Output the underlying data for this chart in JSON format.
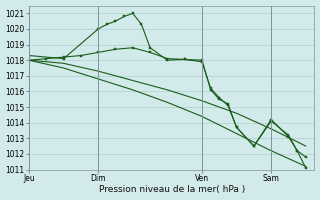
{
  "background_color": "#d2eaea",
  "grid_color": "#b0d0d0",
  "line_color": "#1a5c1a",
  "sep_color": "#8090a0",
  "xlabel": "Pression niveau de la mer( hPa )",
  "ylim": [
    1011,
    1021.5
  ],
  "yticks": [
    1011,
    1012,
    1013,
    1014,
    1015,
    1016,
    1017,
    1018,
    1019,
    1020,
    1021
  ],
  "xtick_labels": [
    "Jeu",
    "Dim",
    "Ven",
    "Sam"
  ],
  "xtick_positions": [
    0,
    8,
    20,
    28
  ],
  "xlim": [
    0,
    33
  ],
  "lines": [
    {
      "x": [
        0,
        4,
        8,
        9,
        10,
        11,
        12,
        13,
        14,
        16,
        18,
        20,
        21,
        22,
        23,
        24,
        26,
        28,
        30,
        31,
        32
      ],
      "y": [
        1018.3,
        1018.1,
        1020.0,
        1020.3,
        1020.5,
        1020.8,
        1021.0,
        1020.3,
        1018.8,
        1018.0,
        1018.05,
        1017.9,
        1016.2,
        1015.6,
        1015.1,
        1013.7,
        1012.5,
        1014.2,
        1013.1,
        1012.2,
        1011.8
      ],
      "marker": true
    },
    {
      "x": [
        0,
        2,
        4,
        6,
        8,
        10,
        12,
        14,
        16,
        18,
        20,
        21,
        22,
        23,
        24,
        26,
        28,
        30,
        31,
        32
      ],
      "y": [
        1018.0,
        1018.1,
        1018.2,
        1018.3,
        1018.5,
        1018.7,
        1018.8,
        1018.5,
        1018.1,
        1018.05,
        1018.0,
        1016.1,
        1015.5,
        1015.2,
        1013.7,
        1012.5,
        1014.1,
        1013.2,
        1012.2,
        1011.1
      ],
      "marker": true
    },
    {
      "x": [
        0,
        4,
        8,
        12,
        16,
        20,
        24,
        28,
        32
      ],
      "y": [
        1018.0,
        1017.8,
        1017.3,
        1016.7,
        1016.1,
        1015.4,
        1014.6,
        1013.6,
        1012.5
      ],
      "marker": false
    },
    {
      "x": [
        0,
        4,
        8,
        12,
        16,
        20,
        24,
        28,
        32
      ],
      "y": [
        1018.0,
        1017.5,
        1016.8,
        1016.1,
        1015.3,
        1014.4,
        1013.3,
        1012.2,
        1011.2
      ],
      "marker": false
    }
  ],
  "figsize": [
    3.2,
    2.0
  ],
  "dpi": 100,
  "tick_fontsize": 5.5,
  "xlabel_fontsize": 6.5
}
